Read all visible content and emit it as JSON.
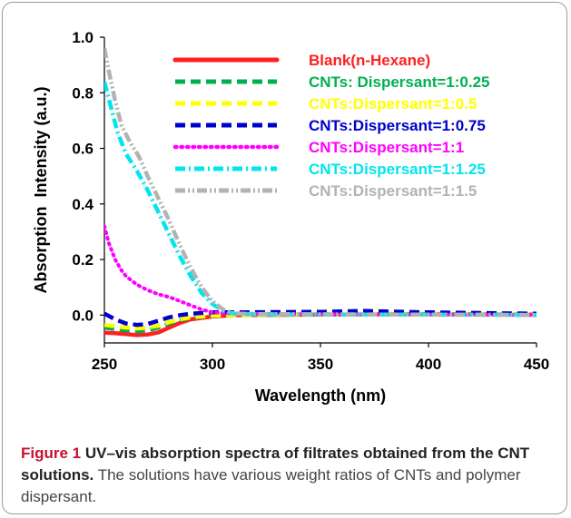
{
  "chart_data": {
    "type": "line",
    "xlabel": "Wavelength (nm)",
    "ylabel": "Absorption  Intensity (a.u.)",
    "xlim": [
      250,
      450
    ],
    "ylim": [
      -0.1,
      1.0
    ],
    "xticks": [
      250,
      300,
      350,
      400,
      450
    ],
    "yticks": [
      0.0,
      0.2,
      0.4,
      0.6,
      0.8,
      1.0
    ],
    "xtick_labels": [
      "250",
      "300",
      "350",
      "400",
      "450"
    ],
    "ytick_labels": [
      "0.0",
      "0.2",
      "0.4",
      "0.6",
      "0.8",
      "1.0"
    ],
    "grid": false,
    "legend_position": "top-right",
    "series": [
      {
        "name": "Blank(n-Hexane)",
        "color": "#ff2020",
        "dash": "solid",
        "x": [
          250,
          255,
          260,
          265,
          270,
          275,
          280,
          285,
          290,
          300,
          310,
          350,
          400,
          450
        ],
        "y": [
          -0.063,
          -0.065,
          -0.068,
          -0.072,
          -0.07,
          -0.062,
          -0.045,
          -0.028,
          -0.015,
          -0.005,
          0.0,
          0.002,
          0.003,
          0.002
        ]
      },
      {
        "name": "CNTs: Dispersant=1:0.25",
        "color": "#00b050",
        "dash": "dash",
        "x": [
          250,
          255,
          260,
          265,
          270,
          275,
          280,
          285,
          290,
          300,
          310,
          350,
          400,
          450
        ],
        "y": [
          -0.045,
          -0.05,
          -0.055,
          -0.058,
          -0.055,
          -0.045,
          -0.03,
          -0.018,
          -0.01,
          -0.003,
          0.0,
          0.003,
          0.004,
          0.002
        ]
      },
      {
        "name": "CNTs:Dispersant=1:0.5",
        "color": "#ffff00",
        "dash": "dash",
        "x": [
          250,
          255,
          260,
          265,
          270,
          275,
          280,
          285,
          290,
          300,
          310,
          350,
          400,
          450
        ],
        "y": [
          -0.035,
          -0.04,
          -0.045,
          -0.048,
          -0.045,
          -0.038,
          -0.025,
          -0.015,
          -0.008,
          -0.002,
          0.0,
          0.004,
          0.005,
          0.003
        ]
      },
      {
        "name": "CNTs:Dispersant=1:0.75",
        "color": "#0000cc",
        "dash": "dash",
        "x": [
          250,
          255,
          260,
          265,
          270,
          275,
          280,
          285,
          290,
          300,
          310,
          350,
          370,
          400,
          450
        ],
        "y": [
          0.005,
          -0.015,
          -0.03,
          -0.035,
          -0.032,
          -0.02,
          -0.008,
          0.0,
          0.005,
          0.01,
          0.01,
          0.012,
          0.015,
          0.01,
          0.005
        ]
      },
      {
        "name": "CNTs:Dispersant=1:1",
        "color": "#ff00ff",
        "dash": "dot",
        "x": [
          250,
          252,
          255,
          258,
          260,
          265,
          270,
          275,
          280,
          285,
          290,
          295,
          300,
          310,
          350,
          400,
          450
        ],
        "y": [
          0.32,
          0.26,
          0.2,
          0.16,
          0.14,
          0.11,
          0.09,
          0.075,
          0.065,
          0.05,
          0.035,
          0.02,
          0.01,
          0.005,
          0.003,
          0.002,
          0.0
        ]
      },
      {
        "name": "CNTs:Dispersant=1:1.25",
        "color": "#00e5ee",
        "dash": "dashdot",
        "x": [
          250,
          253,
          256,
          260,
          265,
          270,
          275,
          280,
          285,
          290,
          295,
          300,
          305,
          310,
          320,
          350,
          400,
          450
        ],
        "y": [
          0.84,
          0.75,
          0.66,
          0.58,
          0.52,
          0.45,
          0.37,
          0.29,
          0.21,
          0.14,
          0.08,
          0.04,
          0.015,
          0.005,
          0.003,
          0.002,
          0.002,
          0.001
        ]
      },
      {
        "name": "CNTs:Dispersant=1:1.5",
        "color": "#b3b3b3",
        "dash": "dashdotdot",
        "x": [
          250,
          252,
          255,
          258,
          262,
          266,
          270,
          275,
          280,
          285,
          290,
          295,
          300,
          305,
          310,
          320,
          350,
          400,
          450
        ],
        "y": [
          0.96,
          0.88,
          0.77,
          0.68,
          0.62,
          0.57,
          0.5,
          0.42,
          0.34,
          0.25,
          0.17,
          0.1,
          0.05,
          0.02,
          0.006,
          0.004,
          0.003,
          0.002,
          0.001
        ]
      }
    ]
  },
  "caption": {
    "figure_label": "Figure 1",
    "bold_text": "UV–vis absorption spectra of filtrates obtained from the CNT solutions.",
    "text": "The solutions have various weight ratios of CNTs and polymer dispersant."
  }
}
